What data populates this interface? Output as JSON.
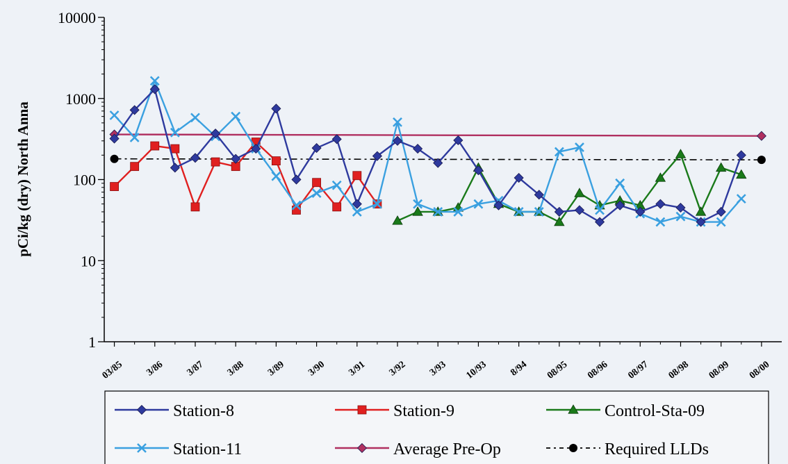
{
  "chart_data": {
    "type": "line",
    "y_scale": "log",
    "ylim": [
      1,
      10000
    ],
    "ylabel": "pCi/kg (dry) North Anna",
    "y_ticks": [
      "1",
      "10",
      "100",
      "1000",
      "10000"
    ],
    "x_tick_labels": [
      "03/85",
      "3/86",
      "3/87",
      "3/88",
      "3/89",
      "3/90",
      "3/91",
      "3/92",
      "3/93",
      "10/93",
      "8/94",
      "08/95",
      "08/96",
      "08/97",
      "08/98",
      "08/99",
      "08/00"
    ],
    "x_tick_positions": [
      0,
      2,
      4,
      6,
      8,
      10,
      12,
      14,
      16,
      18,
      20,
      22,
      24,
      26,
      28,
      30,
      32
    ],
    "x_range": [
      -0.5,
      33
    ],
    "grid": false,
    "legend_position": "bottom",
    "series": [
      {
        "name": "Station-8",
        "color": "#2e3a9e",
        "marker": "diamond",
        "line_style": "solid",
        "points": [
          [
            0,
            320
          ],
          [
            1,
            720
          ],
          [
            2,
            1300
          ],
          [
            3,
            140
          ],
          [
            4,
            185
          ],
          [
            5,
            370
          ],
          [
            6,
            180
          ],
          [
            7,
            240
          ],
          [
            8,
            750
          ],
          [
            9,
            100
          ],
          [
            10,
            245
          ],
          [
            11,
            315
          ],
          [
            12,
            50
          ],
          [
            13,
            195
          ],
          [
            14,
            300
          ],
          [
            15,
            240
          ],
          [
            16,
            160
          ],
          [
            17,
            305
          ],
          [
            18,
            130
          ],
          [
            19,
            48
          ],
          [
            20,
            105
          ],
          [
            21,
            65
          ],
          [
            22,
            40
          ],
          [
            23,
            42
          ],
          [
            24,
            30
          ],
          [
            25,
            48
          ],
          [
            26,
            40
          ],
          [
            27,
            50
          ],
          [
            28,
            45
          ],
          [
            29,
            30
          ],
          [
            30,
            40
          ],
          [
            31,
            200
          ]
        ]
      },
      {
        "name": "Station-9",
        "color": "#e02020",
        "marker": "square",
        "line_style": "solid",
        "points": [
          [
            0,
            82
          ],
          [
            1,
            145
          ],
          [
            2,
            260
          ],
          [
            3,
            240
          ],
          [
            4,
            46
          ],
          [
            5,
            165
          ],
          [
            6,
            145
          ],
          [
            7,
            290
          ],
          [
            8,
            170
          ],
          [
            9,
            42
          ],
          [
            10,
            92
          ],
          [
            11,
            46
          ],
          [
            12,
            112
          ],
          [
            13,
            50
          ]
        ]
      },
      {
        "name": "Control-Sta-09",
        "color": "#1a7a1a",
        "marker": "triangle",
        "line_style": "solid",
        "points": [
          [
            14,
            31
          ],
          [
            15,
            40
          ],
          [
            16,
            40
          ],
          [
            17,
            45
          ],
          [
            18,
            140
          ],
          [
            19,
            50
          ],
          [
            20,
            40
          ],
          [
            21,
            40
          ],
          [
            22,
            30
          ],
          [
            23,
            68
          ],
          [
            24,
            48
          ],
          [
            25,
            55
          ],
          [
            26,
            48
          ],
          [
            27,
            105
          ],
          [
            28,
            205
          ],
          [
            29,
            40
          ],
          [
            30,
            140
          ],
          [
            31,
            115
          ]
        ]
      },
      {
        "name": "Station-11",
        "color": "#3aa0e0",
        "marker": "x",
        "line_style": "solid",
        "points": [
          [
            0,
            620
          ],
          [
            1,
            330
          ],
          [
            2,
            1650
          ],
          [
            3,
            380
          ],
          [
            4,
            580
          ],
          [
            5,
            340
          ],
          [
            6,
            600
          ],
          [
            7,
            240
          ],
          [
            8,
            110
          ],
          [
            9,
            48
          ],
          [
            10,
            68
          ],
          [
            11,
            85
          ],
          [
            12,
            40
          ],
          [
            13,
            50
          ],
          [
            14,
            510
          ],
          [
            15,
            50
          ],
          [
            16,
            40
          ],
          [
            17,
            40
          ],
          [
            18,
            50
          ],
          [
            19,
            55
          ],
          [
            20,
            40
          ],
          [
            21,
            40
          ],
          [
            22,
            220
          ],
          [
            23,
            250
          ],
          [
            24,
            42
          ],
          [
            25,
            90
          ],
          [
            26,
            38
          ],
          [
            27,
            30
          ],
          [
            28,
            35
          ],
          [
            29,
            30
          ],
          [
            30,
            30
          ],
          [
            31,
            58
          ]
        ]
      },
      {
        "name": "Average Pre-Op",
        "color": "#b03060",
        "marker": "diamond",
        "line_style": "solid",
        "points": [
          [
            0,
            360
          ],
          [
            32,
            345
          ]
        ]
      },
      {
        "name": "Required LLDs",
        "color": "#000000",
        "marker": "circle",
        "line_style": "dashdot",
        "points": [
          [
            0,
            180
          ],
          [
            32,
            175
          ]
        ]
      }
    ]
  },
  "legend": {
    "items": [
      "Station-8",
      "Station-9",
      "Control-Sta-09",
      "Station-11",
      "Average Pre-Op",
      "Required LLDs"
    ]
  }
}
